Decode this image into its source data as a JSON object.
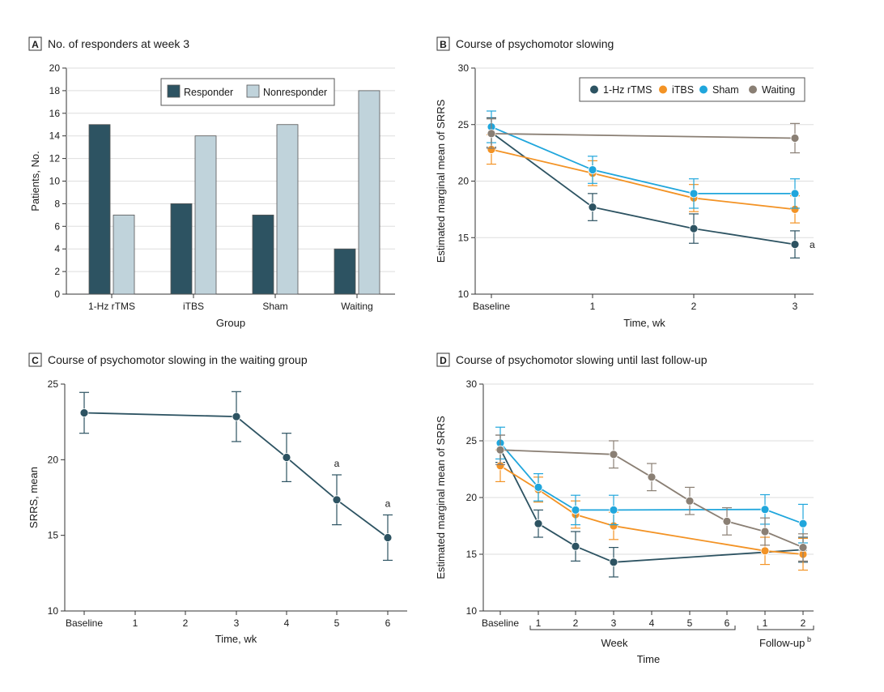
{
  "colors": {
    "rtms": "#2d5362",
    "itbs": "#f39325",
    "sham": "#20a6dc",
    "waiting": "#8a7f74",
    "responder": "#2d5362",
    "nonresponder": "#c0d3db",
    "axis": "#333333",
    "grid": "#dedede"
  },
  "chart_data": [
    {
      "panel": "A",
      "type": "bar",
      "title": "No. of responders at week 3",
      "xlabel": "Group",
      "ylabel": "Patients, No.",
      "ylim": [
        0,
        20
      ],
      "yticks": [
        "0",
        "2",
        "4",
        "6",
        "8",
        "10",
        "12",
        "14",
        "16",
        "18",
        "20"
      ],
      "grid": true,
      "legend_position": "top-right",
      "categories": [
        "1-Hz rTMS",
        "iTBS",
        "Sham",
        "Waiting"
      ],
      "series": [
        {
          "name": "Responder",
          "values": [
            15,
            8,
            7,
            4
          ],
          "color_key": "responder"
        },
        {
          "name": "Nonresponder",
          "values": [
            7,
            14,
            15,
            18
          ],
          "color_key": "nonresponder"
        }
      ]
    },
    {
      "panel": "B",
      "type": "line",
      "title": "Course of psychomotor slowing",
      "xlabel": "Time, wk",
      "ylabel": "Estimated marginal mean of SRRS",
      "ylim": [
        10,
        30
      ],
      "yticks": [
        "10",
        "15",
        "20",
        "25",
        "30"
      ],
      "xticks": [
        "Baseline",
        "1",
        "2",
        "3"
      ],
      "grid": true,
      "legend_position": "top-right",
      "annotations": [
        {
          "text": "a",
          "x": 3,
          "series": "1-Hz rTMS"
        }
      ],
      "series": [
        {
          "name": "1-Hz rTMS",
          "color_key": "rtms",
          "x": [
            0,
            1,
            2,
            3
          ],
          "y": [
            24.3,
            17.7,
            15.8,
            14.4
          ],
          "err": [
            1.3,
            1.2,
            1.3,
            1.2
          ]
        },
        {
          "name": "iTBS",
          "color_key": "itbs",
          "x": [
            0,
            1,
            2,
            3
          ],
          "y": [
            22.8,
            20.7,
            18.5,
            17.5
          ],
          "err": [
            1.3,
            1.1,
            1.2,
            1.2
          ]
        },
        {
          "name": "Sham",
          "color_key": "sham",
          "x": [
            0,
            1,
            2,
            3
          ],
          "y": [
            24.8,
            21.0,
            18.9,
            18.9
          ],
          "err": [
            1.4,
            1.2,
            1.3,
            1.3
          ]
        },
        {
          "name": "Waiting",
          "color_key": "waiting",
          "x": [
            0,
            3
          ],
          "y": [
            24.2,
            23.8
          ],
          "err": [
            1.3,
            1.3
          ]
        }
      ]
    },
    {
      "panel": "C",
      "type": "line",
      "title": "Course of psychomotor slowing in the waiting group",
      "xlabel": "Time, wk",
      "ylabel": "SRRS, mean",
      "ylim": [
        10,
        25
      ],
      "yticks": [
        "10",
        "15",
        "20",
        "25"
      ],
      "xticks": [
        "Baseline",
        "1",
        "2",
        "3",
        "4",
        "5",
        "6"
      ],
      "grid": false,
      "annotations": [
        {
          "text": "a",
          "x": 5
        },
        {
          "text": "a",
          "x": 6
        }
      ],
      "series": [
        {
          "name": "",
          "color_key": "rtms",
          "x": [
            0,
            3,
            4,
            5,
            6
          ],
          "y": [
            23.1,
            22.85,
            20.15,
            17.35,
            14.85
          ],
          "err": [
            1.35,
            1.65,
            1.6,
            1.65,
            1.5
          ]
        }
      ]
    },
    {
      "panel": "D",
      "type": "line",
      "title": "Course of psychomotor slowing until last follow-up",
      "xlabel": "Time",
      "ylabel": "Estimated marginal mean of SRRS",
      "ylim": [
        10,
        30
      ],
      "yticks": [
        "10",
        "15",
        "20",
        "25",
        "30"
      ],
      "xticks": [
        "Baseline",
        "1",
        "2",
        "3",
        "4",
        "5",
        "6",
        "1",
        "2"
      ],
      "bracket_week": "Week",
      "bracket_followup": "Follow-up",
      "bracket_followup_sup": "b",
      "grid": true,
      "series": [
        {
          "name": "1-Hz rTMS",
          "color_key": "rtms",
          "x": [
            0,
            1,
            2,
            3,
            8
          ],
          "y": [
            24.3,
            17.7,
            15.7,
            14.3,
            15.4
          ],
          "err": [
            1.2,
            1.2,
            1.3,
            1.3,
            1.1
          ]
        },
        {
          "name": "iTBS",
          "color_key": "itbs",
          "x": [
            0,
            1,
            2,
            3,
            7,
            8
          ],
          "y": [
            22.8,
            20.7,
            18.5,
            17.5,
            15.3,
            15.0
          ],
          "err": [
            1.4,
            1.1,
            1.2,
            1.2,
            1.2,
            1.4
          ]
        },
        {
          "name": "Sham",
          "color_key": "sham",
          "x": [
            0,
            1,
            2,
            3,
            7,
            8
          ],
          "y": [
            24.8,
            20.9,
            18.9,
            18.9,
            18.95,
            17.7
          ],
          "err": [
            1.4,
            1.2,
            1.3,
            1.3,
            1.3,
            1.7
          ]
        },
        {
          "name": "Waiting",
          "color_key": "waiting",
          "x": [
            0,
            3,
            4,
            5,
            6,
            7,
            8
          ],
          "y": [
            24.2,
            23.8,
            21.8,
            19.7,
            17.9,
            17.0,
            15.6
          ],
          "err": [
            1.3,
            1.2,
            1.2,
            1.2,
            1.2,
            1.2,
            1.2
          ]
        }
      ]
    }
  ]
}
